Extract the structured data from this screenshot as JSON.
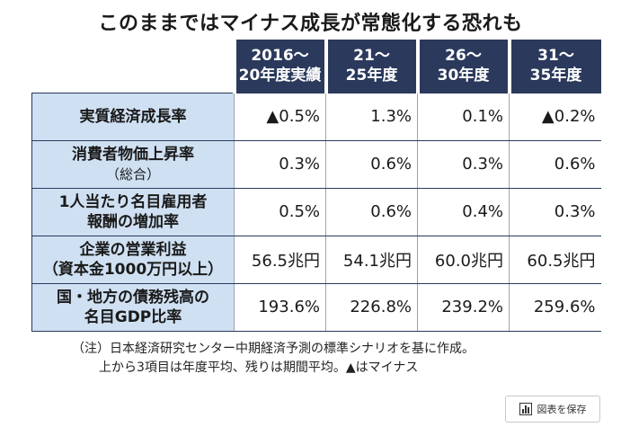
{
  "title": "このままではマイナス成長が常態化する恐れも",
  "headers": [
    {
      "line1": "2016～",
      "line2": "20年度実績"
    },
    {
      "line1": "21～",
      "line2": "25年度"
    },
    {
      "line1": "26～",
      "line2": "30年度"
    },
    {
      "line1": "31～",
      "line2": "35年度"
    }
  ],
  "rows": [
    {
      "line1": "実質経済成長率",
      "line2": "",
      "values": [
        "▲0.5%",
        "1.3%",
        "0.1%",
        "▲0.2%"
      ]
    },
    {
      "line1": "消費者物価上昇率",
      "line2": "（総合）",
      "values": [
        "0.3%",
        "0.6%",
        "0.3%",
        "0.6%"
      ]
    },
    {
      "line1": "1人当たり名目雇用者",
      "line2": "報酬の増加率",
      "values": [
        "0.5%",
        "0.6%",
        "0.4%",
        "0.3%"
      ]
    },
    {
      "line1": "企業の営業利益",
      "line2": "（資本金1000万円以上）",
      "values": [
        "56.5兆円",
        "54.1兆円",
        "60.0兆円",
        "60.5兆円"
      ]
    },
    {
      "line1": "国・地方の債務残高の",
      "line2": "名目GDP比率",
      "values": [
        "193.6%",
        "226.8%",
        "239.2%",
        "259.6%"
      ]
    }
  ],
  "notes": {
    "line1": "（注）日本経済研究センター中期経済予測の標準シナリオを基に作成。",
    "line2": "上から3項目は年度平均、残りは期間平均。▲はマイナス"
  },
  "save_button": {
    "label": "図表を保存",
    "icon": "bar-chart-icon"
  },
  "colors": {
    "header_bg": "#2b3a5c",
    "label_bg": "#cfe0f2"
  }
}
